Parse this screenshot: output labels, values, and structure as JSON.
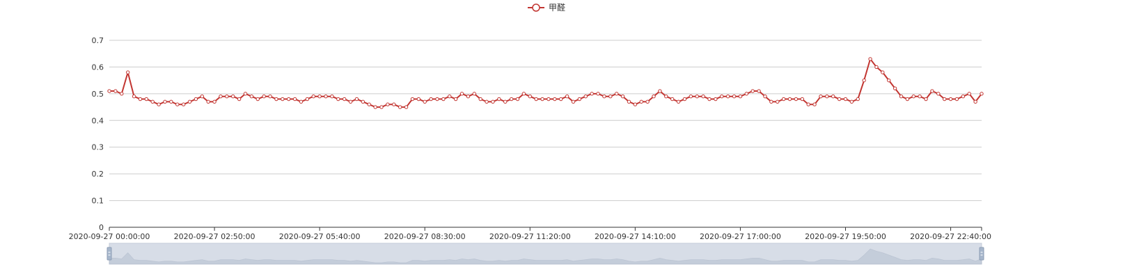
{
  "colors": {
    "series": "#c23531",
    "grid": "#cccccc",
    "axis": "#333333",
    "zoom_fill": "#d7dde7",
    "zoom_area": "#b9c3d3",
    "zoom_handle": "#a7b7cc"
  },
  "chart_data": {
    "type": "line",
    "legend": {
      "label": "甲醛",
      "placement": "top-center",
      "icon": "circle-line-icon"
    },
    "y_axis": {
      "ylim": [
        0,
        0.7
      ],
      "ticks": [
        "0",
        "0.1",
        "0.2",
        "0.3",
        "0.4",
        "0.5",
        "0.6",
        "0.7"
      ]
    },
    "x_axis": {
      "ticks": [
        "2020-09-27 00:00:00",
        "2020-09-27 02:50:00",
        "2020-09-27 05:40:00",
        "2020-09-27 08:30:00",
        "2020-09-27 11:20:00",
        "2020-09-27 14:10:00",
        "2020-09-27 17:00:00",
        "2020-09-27 19:50:00",
        "2020-09-27 22:40:00"
      ],
      "start": "2020-09-27 00:00:00",
      "interval_minutes": 10
    },
    "grid": true,
    "data_zoom": true,
    "series": [
      {
        "name": "甲醛",
        "values": [
          0.51,
          0.51,
          0.5,
          0.58,
          0.49,
          0.48,
          0.48,
          0.47,
          0.46,
          0.47,
          0.47,
          0.46,
          0.46,
          0.47,
          0.48,
          0.49,
          0.47,
          0.47,
          0.49,
          0.49,
          0.49,
          0.48,
          0.5,
          0.49,
          0.48,
          0.49,
          0.49,
          0.48,
          0.48,
          0.48,
          0.48,
          0.47,
          0.48,
          0.49,
          0.49,
          0.49,
          0.49,
          0.48,
          0.48,
          0.47,
          0.48,
          0.47,
          0.46,
          0.45,
          0.45,
          0.46,
          0.46,
          0.45,
          0.45,
          0.48,
          0.48,
          0.47,
          0.48,
          0.48,
          0.48,
          0.49,
          0.48,
          0.5,
          0.49,
          0.5,
          0.48,
          0.47,
          0.47,
          0.48,
          0.47,
          0.48,
          0.48,
          0.5,
          0.49,
          0.48,
          0.48,
          0.48,
          0.48,
          0.48,
          0.49,
          0.47,
          0.48,
          0.49,
          0.5,
          0.5,
          0.49,
          0.49,
          0.5,
          0.49,
          0.47,
          0.46,
          0.47,
          0.47,
          0.49,
          0.51,
          0.49,
          0.48,
          0.47,
          0.48,
          0.49,
          0.49,
          0.49,
          0.48,
          0.48,
          0.49,
          0.49,
          0.49,
          0.49,
          0.5,
          0.51,
          0.51,
          0.49,
          0.47,
          0.47,
          0.48,
          0.48,
          0.48,
          0.48,
          0.46,
          0.46,
          0.49,
          0.49,
          0.49,
          0.48,
          0.48,
          0.47,
          0.48,
          0.55,
          0.63,
          0.6,
          0.58,
          0.55,
          0.52,
          0.49,
          0.48,
          0.49,
          0.49,
          0.48,
          0.51,
          0.5,
          0.48,
          0.48,
          0.48,
          0.49,
          0.5,
          0.47,
          0.5
        ]
      }
    ]
  }
}
